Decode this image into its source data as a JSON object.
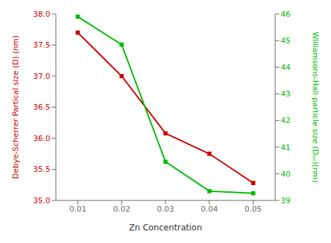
{
  "chart_data": {
    "type": "line",
    "xlabel": "Zn Concentration",
    "ylabel": "Debye-Scherrer Partical size (D) (nm)",
    "y2label": "Williamsons-Hall particle size (Dᵤᵥ)(nm)",
    "x": [
      0.01,
      0.02,
      0.03,
      0.04,
      0.05
    ],
    "series": [
      {
        "color": "#cc0000",
        "marker": "square",
        "values": [
          37.7,
          37.0,
          36.08,
          35.75,
          35.28
        ]
      },
      {
        "color": "#00bb00",
        "marker": "square",
        "axis": "y2",
        "values": [
          45.9,
          44.85,
          40.45,
          39.35,
          39.27
        ]
      }
    ],
    "xlim": [
      0.005,
      0.055
    ],
    "xticks": [
      0.01,
      0.02,
      0.03,
      0.04,
      0.05
    ],
    "ylim": [
      35,
      38
    ],
    "yticks": [
      {
        "value": 35,
        "label": "35.0"
      },
      35.5,
      {
        "value": 36,
        "label": "36.0"
      },
      36.5,
      {
        "value": 37,
        "label": "37.0"
      },
      37.5,
      {
        "value": 38,
        "label": "38.0"
      }
    ],
    "y2lim": [
      39,
      46
    ],
    "y2ticks": [
      39,
      40,
      41,
      42,
      43,
      44,
      45,
      46
    ],
    "grid": false
  }
}
